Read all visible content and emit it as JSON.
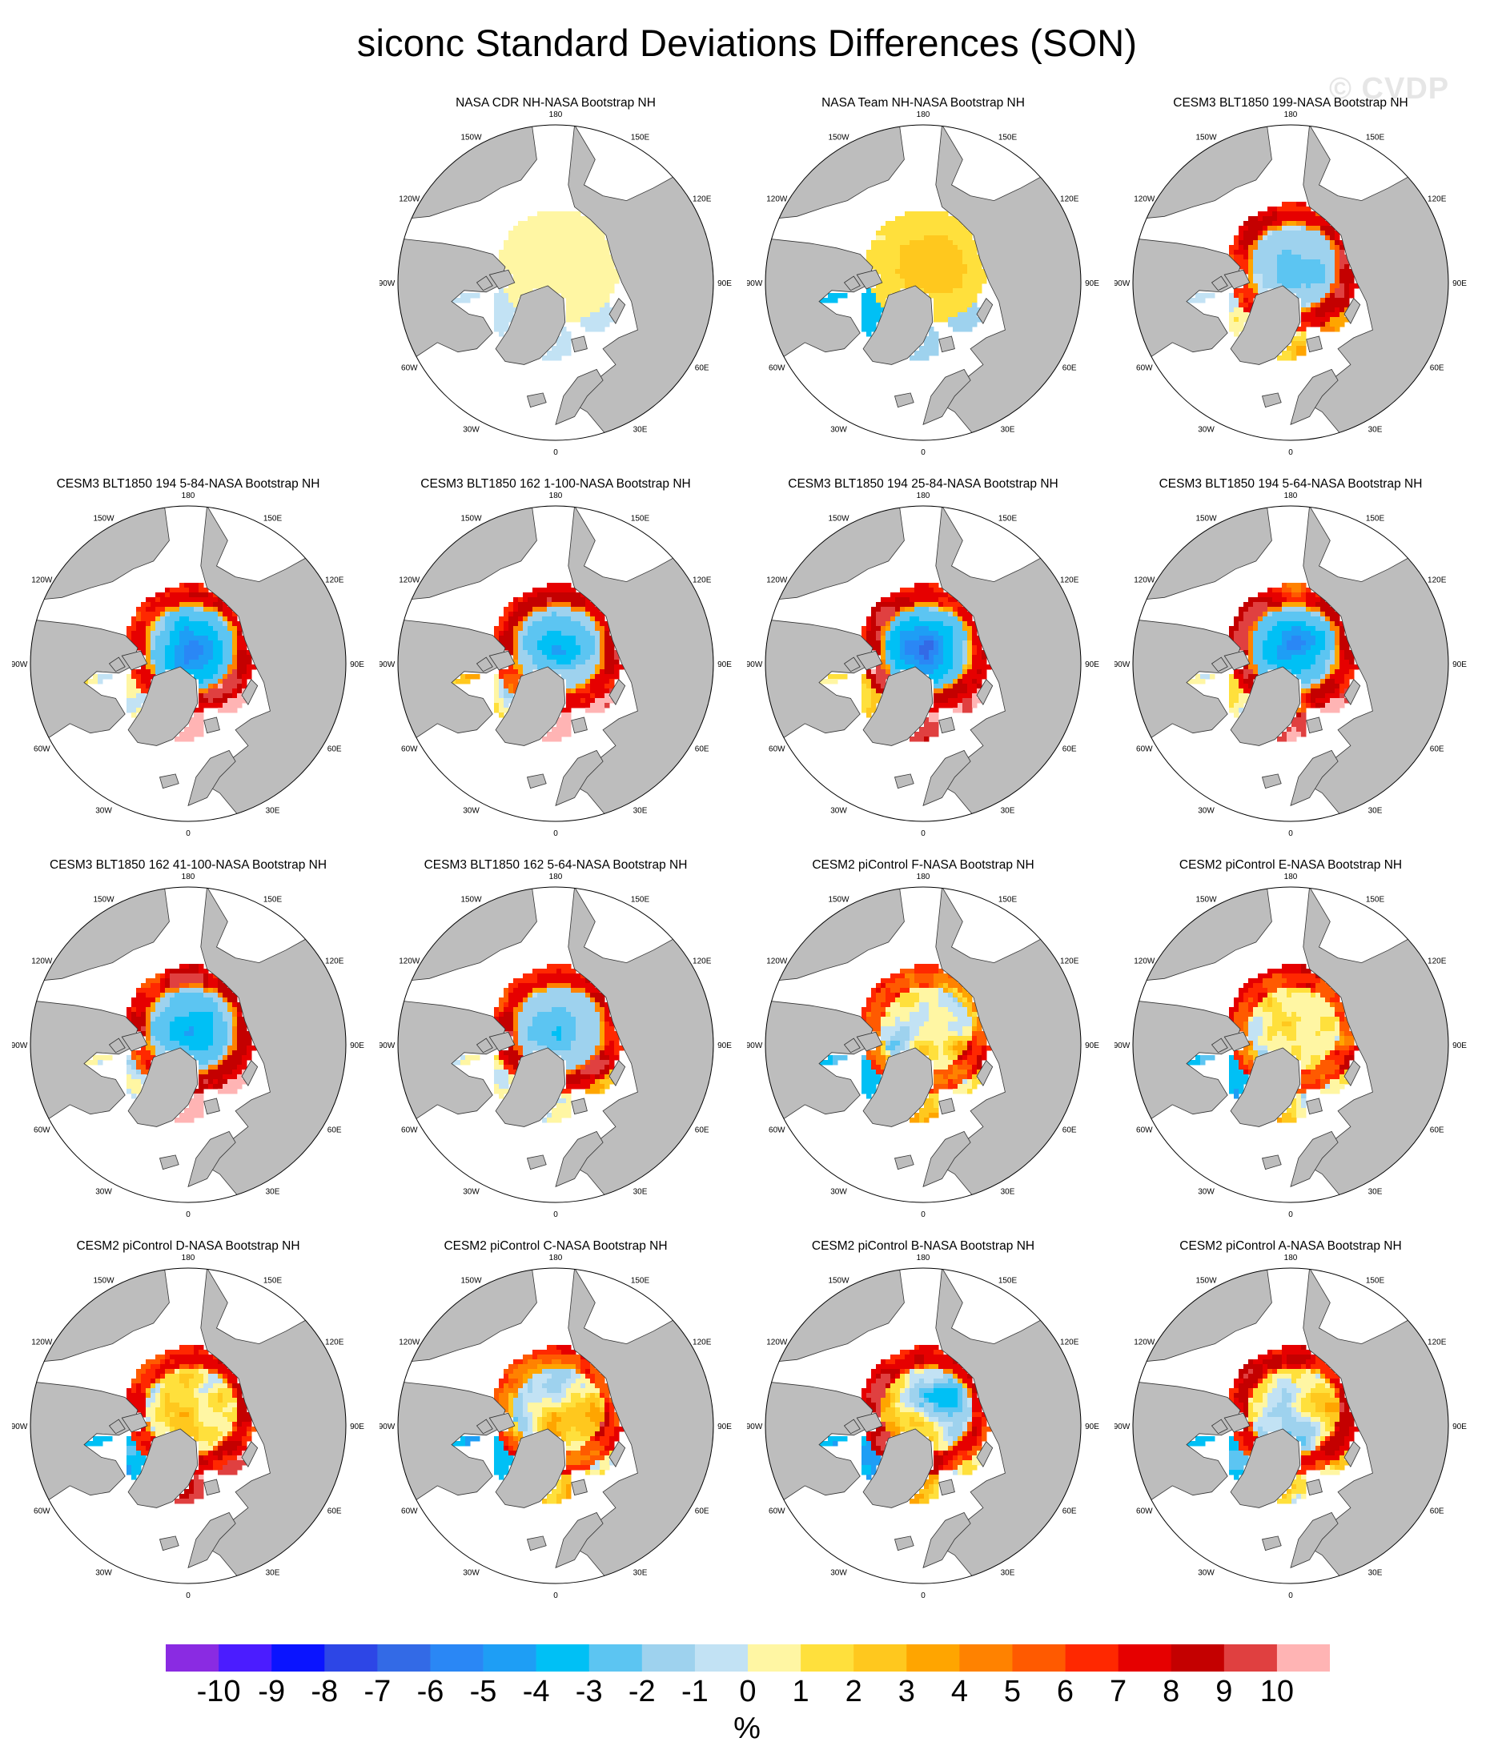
{
  "title": "siconc Standard Deviations Differences (SON)",
  "watermark": "© CVDP",
  "panel_titles": [
    "NASA CDR NH-NASA Bootstrap NH",
    "NASA Team NH-NASA Bootstrap NH",
    "CESM3 BLT1850 199-NASA Bootstrap NH",
    "CESM3 BLT1850 194 5-84-NASA Bootstrap NH",
    "CESM3 BLT1850 162 1-100-NASA Bootstrap NH",
    "CESM3 BLT1850 194 25-84-NASA Bootstrap NH",
    "CESM3 BLT1850 194 5-64-NASA Bootstrap NH",
    "CESM3 BLT1850 162 41-100-NASA Bootstrap NH",
    "CESM3 BLT1850 162 5-64-NASA Bootstrap NH",
    "CESM2 piControl F-NASA Bootstrap NH",
    "CESM2 piControl E-NASA Bootstrap NH",
    "CESM2 piControl D-NASA Bootstrap NH",
    "CESM2 piControl C-NASA Bootstrap NH",
    "CESM2 piControl B-NASA Bootstrap NH",
    "CESM2 piControl A-NASA Bootstrap NH"
  ],
  "longitude_labels": [
    "180",
    "150E",
    "120E",
    "90E",
    "60E",
    "30E",
    "0",
    "30W",
    "60W",
    "90W",
    "120W",
    "150W"
  ],
  "colorbar": {
    "colors": [
      "#8a2be2",
      "#4b1cff",
      "#0a14ff",
      "#2d46e6",
      "#336ae6",
      "#2a87f5",
      "#1e9ef5",
      "#00c0f5",
      "#5cc5f2",
      "#9ed2ee",
      "#c2e2f4",
      "#fff6a3",
      "#ffe03c",
      "#ffc81e",
      "#ffa500",
      "#ff8200",
      "#ff5a00",
      "#ff2800",
      "#e60000",
      "#c40000",
      "#e04040",
      "#ffb4b4"
    ],
    "labels": [
      "-10",
      "-9",
      "-8",
      "-7",
      "-6",
      "-5",
      "-4",
      "-3",
      "-2",
      "-1",
      "0",
      "1",
      "2",
      "3",
      "4",
      "5",
      "6",
      "7",
      "8",
      "9",
      "10"
    ],
    "units": "%"
  },
  "fields": [
    {
      "base": "pos",
      "amp": 0.12,
      "seed": 1,
      "center": "pos",
      "cAmp": 1.3,
      "rim": "none",
      "pac": "neg",
      "bar": "neg"
    },
    {
      "base": "neg",
      "amp": 0.18,
      "seed": 2,
      "center": "pos",
      "cAmp": 3.8,
      "rim": "none",
      "pac": "neg",
      "bar": "neg"
    },
    {
      "base": "neg",
      "amp": 0.5,
      "seed": 3,
      "center": "neg",
      "cAmp": 4.0,
      "rim": "strong",
      "pac": "mix",
      "bar": "mix"
    },
    {
      "base": "pos",
      "amp": 0.5,
      "seed": 4,
      "center": "neg",
      "cAmp": 7.5,
      "rim": "strong",
      "pac": "mix",
      "bar": "pink"
    },
    {
      "base": "pos",
      "amp": 0.5,
      "seed": 5,
      "center": "neg",
      "cAmp": 5.5,
      "rim": "strong",
      "pac": "mix",
      "bar": "pink"
    },
    {
      "base": "pos",
      "amp": 0.5,
      "seed": 6,
      "center": "neg",
      "cAmp": 8.5,
      "rim": "strong",
      "pac": "mix",
      "bar": "pink"
    },
    {
      "base": "pos",
      "amp": 0.5,
      "seed": 7,
      "center": "neg",
      "cAmp": 6.5,
      "rim": "strong",
      "pac": "mix",
      "bar": "pink"
    },
    {
      "base": "pos",
      "amp": 0.5,
      "seed": 8,
      "center": "neg",
      "cAmp": 6.0,
      "rim": "strong",
      "pac": "mix",
      "bar": "pink"
    },
    {
      "base": "pos",
      "amp": 0.5,
      "seed": 9,
      "center": "neg",
      "cAmp": 4.5,
      "rim": "strong",
      "pac": "mix",
      "bar": "mix"
    },
    {
      "base": "pos",
      "amp": 0.6,
      "seed": 10,
      "center": "mix",
      "cAmp": 4.0,
      "rim": "medium",
      "pac": "neg",
      "bar": "mix"
    },
    {
      "base": "pos",
      "amp": 0.6,
      "seed": 11,
      "center": "mix",
      "cAmp": 4.0,
      "rim": "medium",
      "pac": "neg",
      "bar": "mix"
    },
    {
      "base": "pos",
      "amp": 0.6,
      "seed": 12,
      "center": "mix",
      "cAmp": 4.5,
      "rim": "strong",
      "pac": "neg",
      "bar": "pink"
    },
    {
      "base": "pos",
      "amp": 0.6,
      "seed": 13,
      "center": "mix",
      "cAmp": 4.0,
      "rim": "medium",
      "pac": "neg",
      "bar": "mix"
    },
    {
      "base": "pos",
      "amp": 0.6,
      "seed": 14,
      "center": "mix",
      "cAmp": 5.0,
      "rim": "strong",
      "pac": "neg",
      "bar": "mix"
    },
    {
      "base": "pos",
      "amp": 0.6,
      "seed": 15,
      "center": "mix",
      "cAmp": 5.0,
      "rim": "strong",
      "pac": "neg",
      "bar": "mix"
    }
  ]
}
